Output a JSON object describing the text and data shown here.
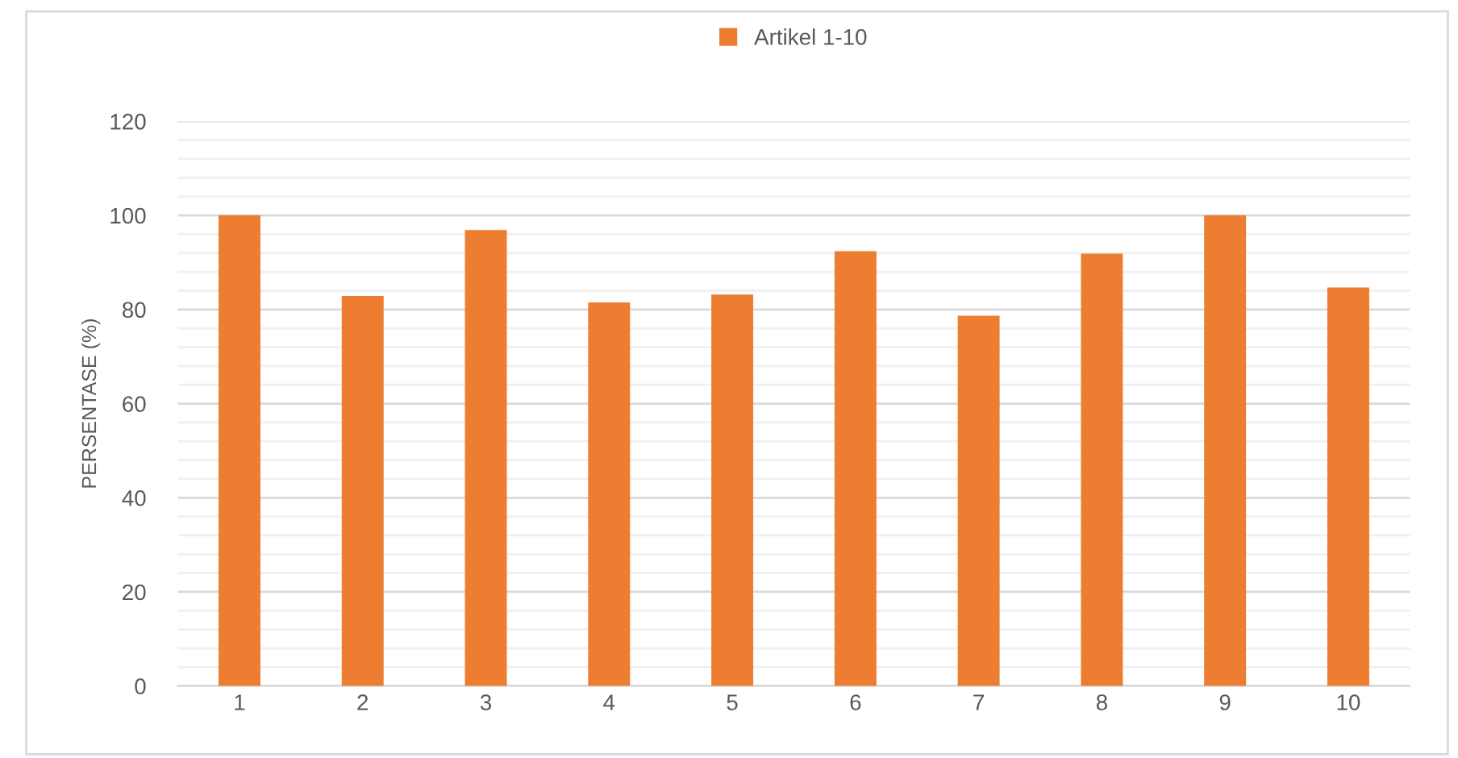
{
  "chart_data": {
    "type": "bar",
    "ylabel": "PERSENTASE (%)",
    "categories": [
      "1",
      "2",
      "3",
      "4",
      "5",
      "6",
      "7",
      "8",
      "9",
      "10"
    ],
    "series": [
      {
        "name": "Artikel 1-10",
        "color": "#ed7d31",
        "values": [
          100,
          82.9,
          96.9,
          81.5,
          83.2,
          92.4,
          78.7,
          91.9,
          100,
          84.7
        ]
      }
    ],
    "ylim": [
      0,
      120
    ],
    "yticks": [
      0,
      {
        "value": 4,
        "label": null
      },
      {
        "value": 8,
        "label": null
      },
      {
        "value": 12,
        "label": null
      },
      {
        "value": 16,
        "label": null
      },
      20,
      {
        "value": 24,
        "label": null
      },
      {
        "value": 28,
        "label": null
      },
      {
        "value": 32,
        "label": null
      },
      {
        "value": 36,
        "label": null
      },
      40,
      {
        "value": 44,
        "label": null
      },
      {
        "value": 48,
        "label": null
      },
      {
        "value": 52,
        "label": null
      },
      {
        "value": 56,
        "label": null
      },
      60,
      {
        "value": 64,
        "label": null
      },
      {
        "value": 68,
        "label": null
      },
      {
        "value": 72,
        "label": null
      },
      {
        "value": 76,
        "label": null
      },
      80,
      {
        "value": 84,
        "label": null
      },
      {
        "value": 88,
        "label": null
      },
      {
        "value": 92,
        "label": null
      },
      {
        "value": 96,
        "label": null
      },
      100,
      {
        "value": 104,
        "label": null
      },
      {
        "value": 108,
        "label": null
      },
      {
        "value": 112,
        "label": null
      },
      {
        "value": 116,
        "label": null
      },
      120
    ],
    "grid": "y",
    "legend": "top"
  }
}
